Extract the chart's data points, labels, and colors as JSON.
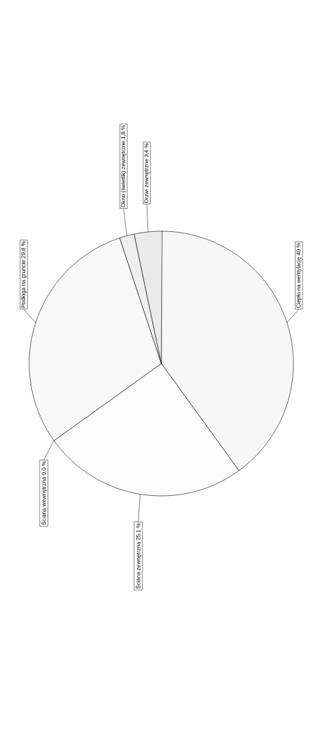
{
  "chart_data": {
    "type": "pie",
    "categories": [
      "Ciepło na wentylację",
      "Ściana zewnętrzna",
      "Ściana wewnętrzna",
      "Podłoga na gruncie",
      "Okno (świetlik) zewnętrzne",
      "Drzwi zewnętrzne"
    ],
    "values": [
      40,
      25.1,
      0.0,
      29.8,
      1.8,
      3.4
    ],
    "value_labels": [
      "40 %",
      "25,1 %",
      "0,0 %",
      "29,8 %",
      "1,8 %",
      "3,4 %"
    ],
    "colors": [
      "#f7f7f7",
      "#fcfcfc",
      "#ffffff",
      "#f8f8f8",
      "#efefef",
      "#eaeaea"
    ]
  }
}
